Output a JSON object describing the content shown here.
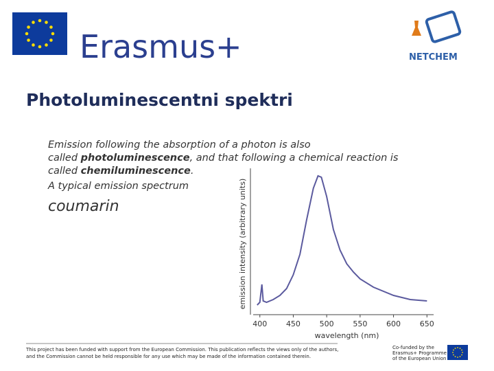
{
  "header": {
    "brand": "Erasmus+",
    "partner_logo": "NETCHEM"
  },
  "title": "Photoluminescentni spektri",
  "body": {
    "line1": "Emission following the absorption of a photon is also",
    "line2_a": "called ",
    "line2_b": "photoluminescence",
    "line2_c": ", and that following a chemical reaction is",
    "line3_a": "called ",
    "line3_b": "chemiluminescence",
    "line3_c": ".",
    "line4": "A typical emission spectrum",
    "compound": "coumarin"
  },
  "chart_data": {
    "type": "line",
    "x_label": "wavelength (nm)",
    "y_label": "emission intensity (arbitrary units)",
    "x": [
      396,
      400,
      403,
      405,
      410,
      420,
      430,
      440,
      450,
      460,
      470,
      480,
      487,
      492,
      500,
      510,
      520,
      530,
      540,
      550,
      570,
      600,
      625,
      650
    ],
    "values": [
      0.03,
      0.05,
      0.18,
      0.06,
      0.05,
      0.07,
      0.1,
      0.15,
      0.25,
      0.4,
      0.65,
      0.88,
      0.97,
      0.96,
      0.82,
      0.58,
      0.43,
      0.33,
      0.27,
      0.22,
      0.16,
      0.1,
      0.07,
      0.06
    ],
    "color": "#5b5a9e",
    "xlim": [
      390,
      660
    ],
    "xticks": [
      400,
      450,
      500,
      550,
      600,
      650
    ],
    "ylim": [
      0,
      1
    ]
  },
  "footer": {
    "line1": "This project has been funded with support from the European Commission. This publication reflects the views only of the authors,",
    "line2": "and the Commission cannot be held responsible for any use which may be made of the information contained therein.",
    "cofund1": "Co-funded by the",
    "cofund2": "Erasmus+ Programme",
    "cofund3": "of the European Union"
  }
}
